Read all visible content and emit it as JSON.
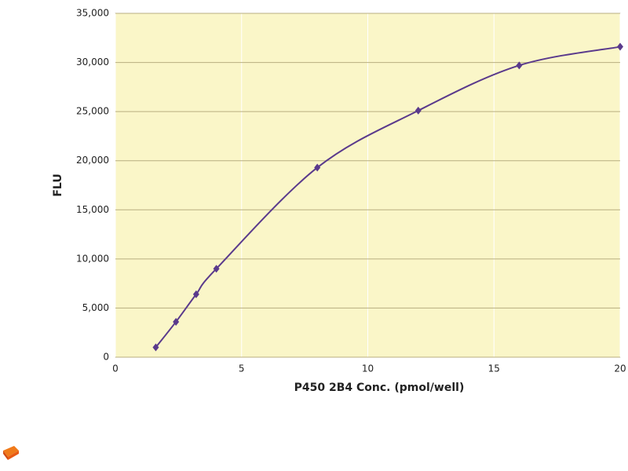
{
  "chart_data": {
    "type": "line",
    "x_label": "P450 2B4 Conc. (pmol/well)",
    "y_label": "FLU",
    "series": [
      {
        "color": "#5a3a8c",
        "x": [
          1.6,
          2.4,
          3.2,
          4,
          8,
          12,
          16,
          20
        ],
        "values": [
          1000,
          3600,
          6400,
          9000,
          19300,
          25100,
          29700,
          31600
        ]
      }
    ],
    "xlim": [
      0,
      20
    ],
    "xticks": [
      0,
      5,
      10,
      15,
      20
    ],
    "ylim": [
      0,
      35000
    ],
    "yticks": [
      0,
      {
        "value": 5000,
        "label": "5,000"
      },
      {
        "value": 10000,
        "label": "10,000"
      },
      {
        "value": 15000,
        "label": "15,000"
      },
      {
        "value": 20000,
        "label": "20,000"
      },
      {
        "value": 25000,
        "label": "25,000"
      },
      {
        "value": 30000,
        "label": "30,000"
      },
      {
        "value": 35000,
        "label": "35,000"
      }
    ],
    "grid": true,
    "smooth": true,
    "background": "#faf6c8"
  }
}
